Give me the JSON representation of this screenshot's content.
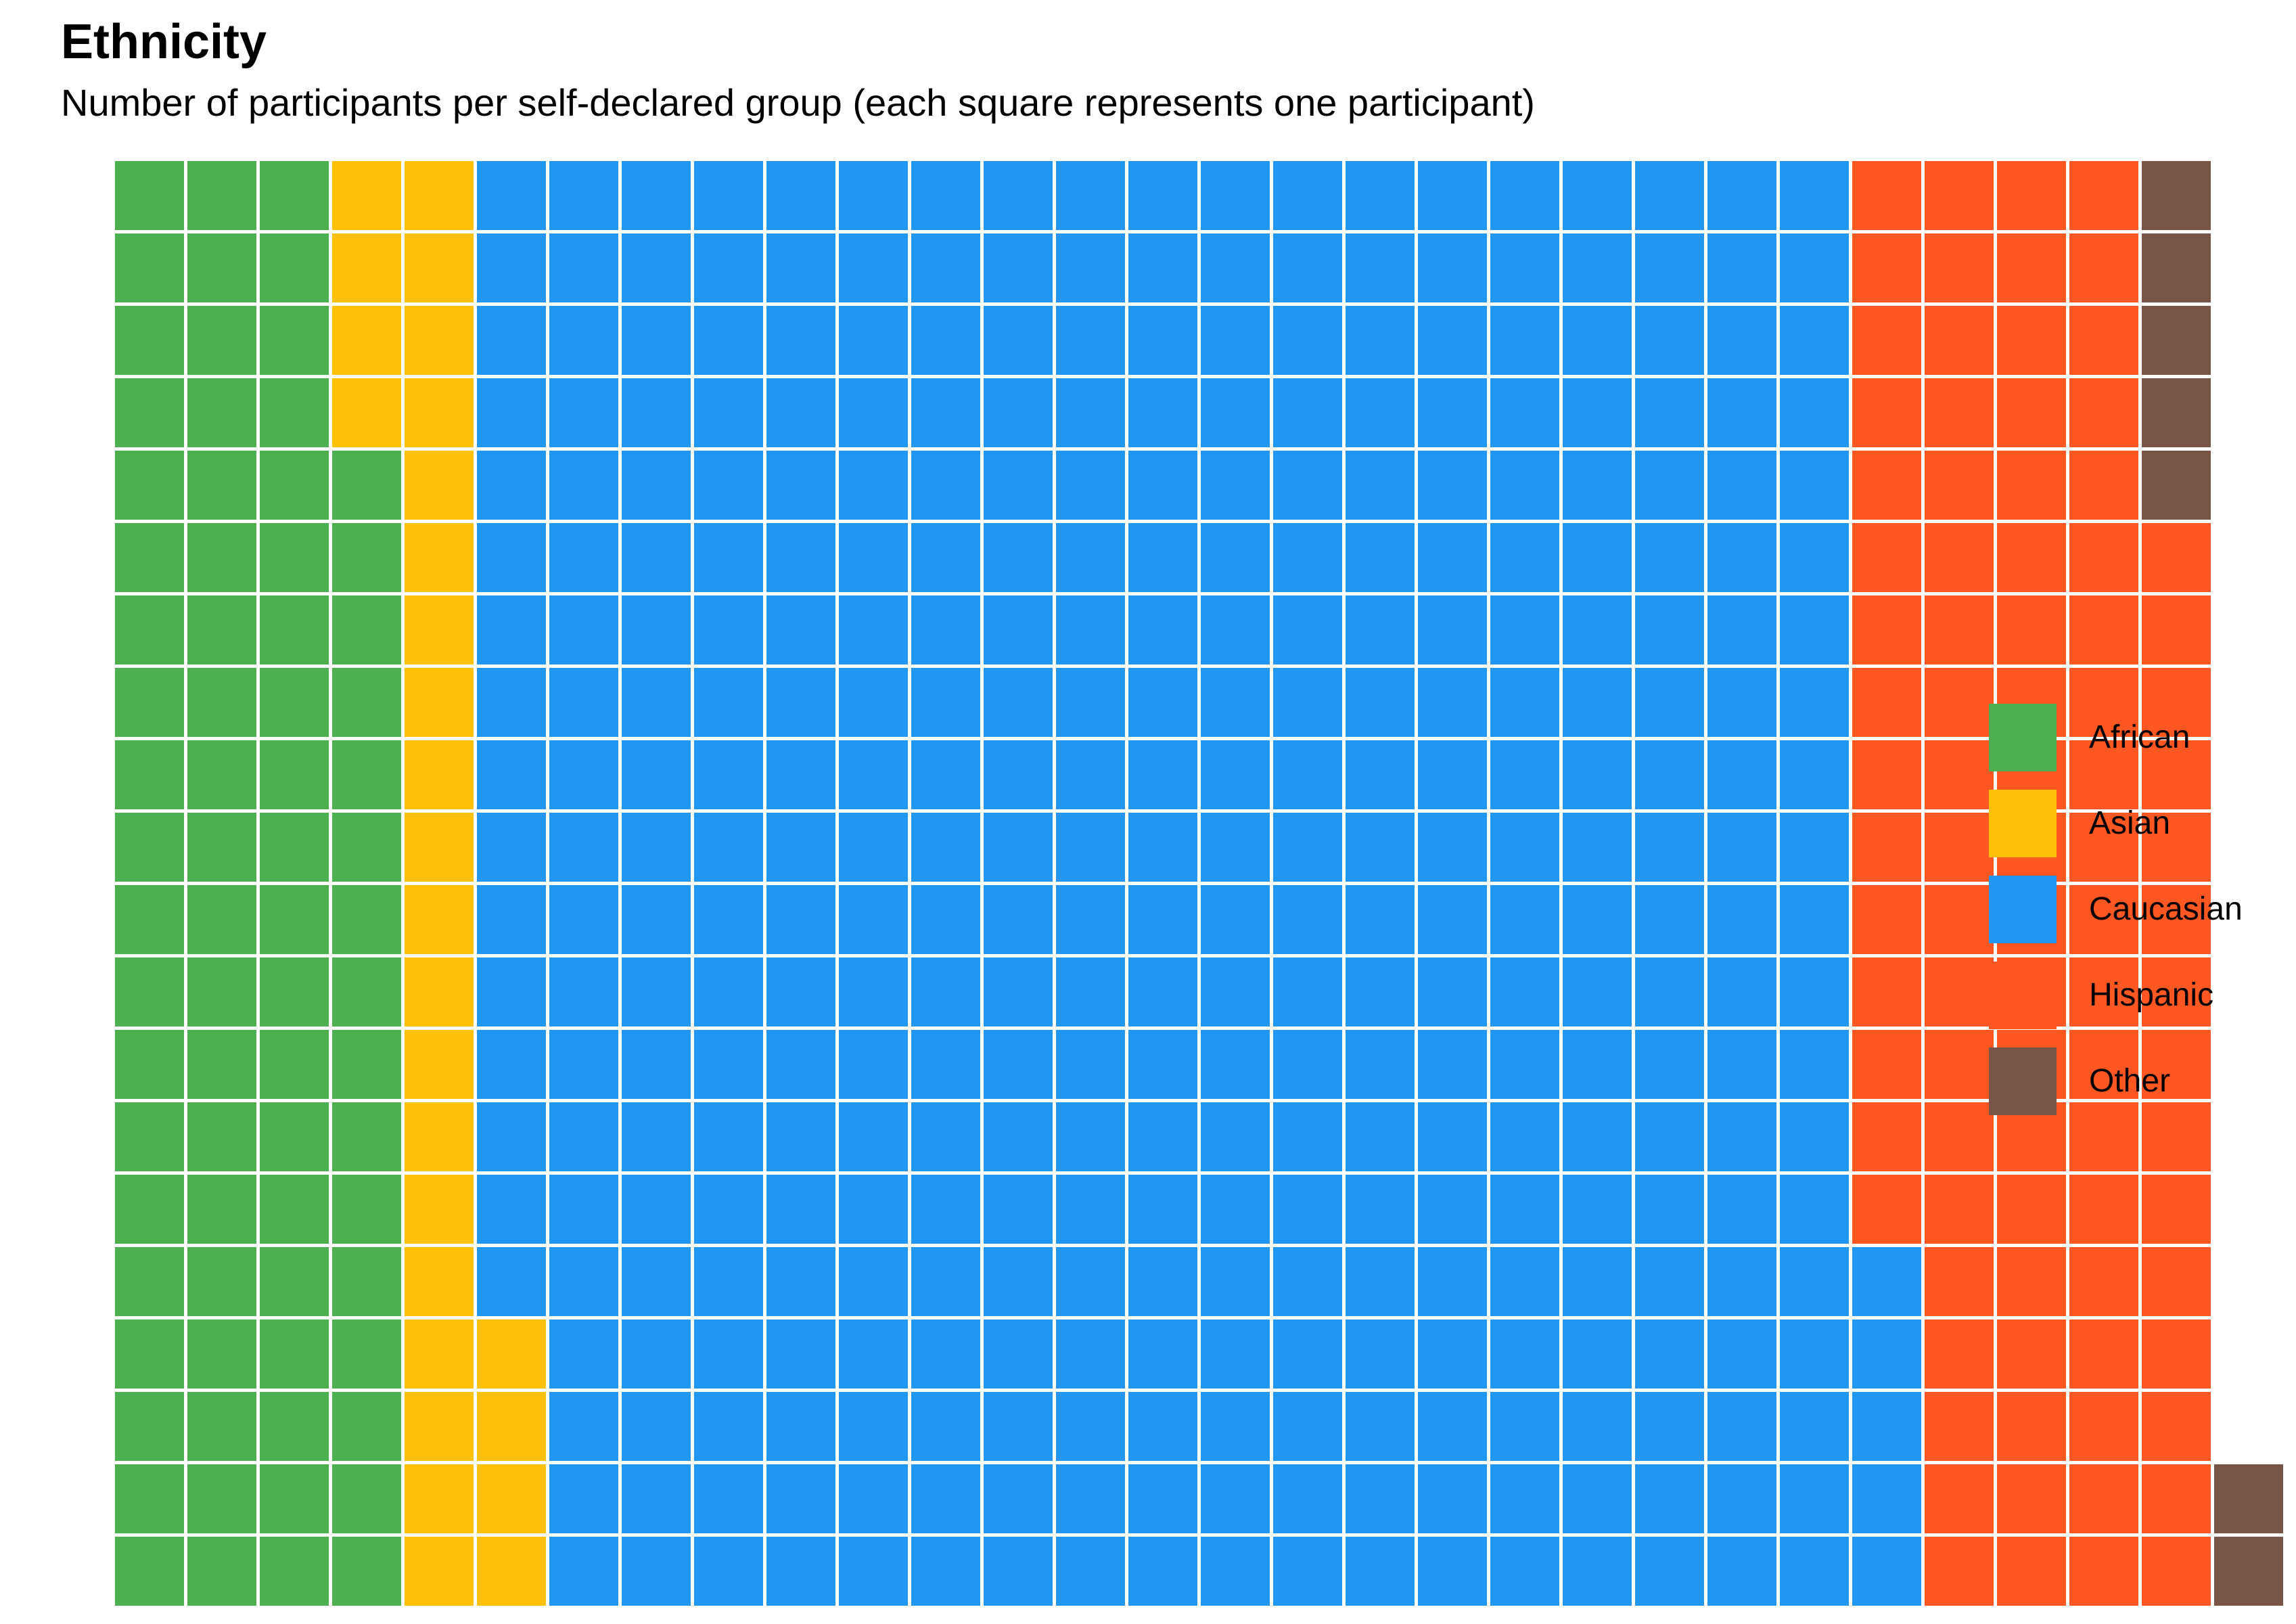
{
  "chart_data": {
    "type": "waffle",
    "title": "Ethnicity",
    "subtitle": "Number of participants per self-declared group (each square represents one participant)",
    "rows": 20,
    "fill_order": "column-major, bottom-to-top",
    "categories": [
      "African",
      "Asian",
      "Caucasian",
      "Hispanic",
      "Other"
    ],
    "values": [
      76,
      28,
      381,
      90,
      7
    ],
    "colors": [
      "#4CAF50",
      "#FFC107",
      "#2196F3",
      "#FF5722",
      "#795548"
    ],
    "total": 582,
    "legend_position": "right"
  }
}
